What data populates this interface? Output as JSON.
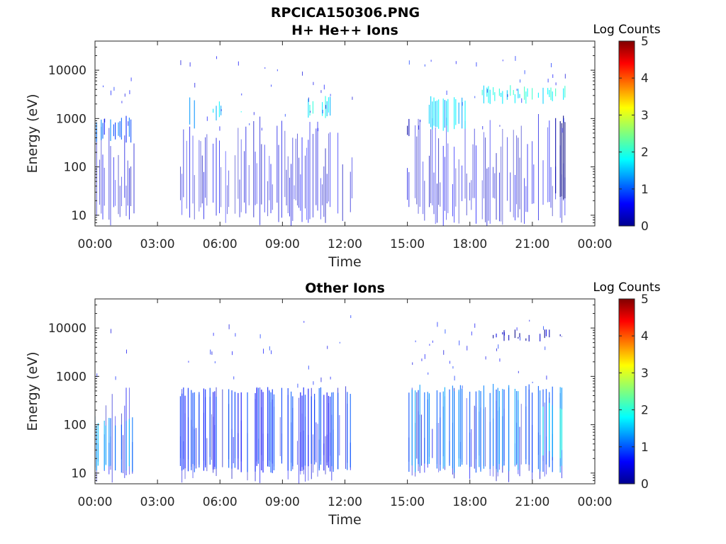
{
  "figure": {
    "title": "RPCICA150306.PNG"
  },
  "chart_data": [
    {
      "type": "heatmap",
      "title": "H+ He++ Ions",
      "xlabel": "Time",
      "ylabel": "Energy (eV)",
      "xticks": [
        "00:00",
        "03:00",
        "06:00",
        "09:00",
        "12:00",
        "15:00",
        "18:00",
        "21:00",
        "00:00"
      ],
      "xlim_hours": [
        0,
        24
      ],
      "yticks": [
        "10",
        "100",
        "1000",
        "10000"
      ],
      "yscale": "log",
      "ylim": [
        6,
        40000
      ],
      "colorbar": {
        "label": "Log Counts",
        "ticks": [
          "0",
          "1",
          "2",
          "3",
          "4",
          "5"
        ],
        "range": [
          0,
          5
        ],
        "colormap": "jet"
      },
      "data_intervals_hours": [
        [
          0.0,
          1.9
        ],
        [
          4.1,
          12.4
        ],
        [
          15.0,
          22.6
        ]
      ],
      "activity": [
        {
          "hours": [
            0.0,
            1.9
          ],
          "energy_eV": [
            300,
            1200
          ],
          "log_counts": 1.0
        },
        {
          "hours": [
            4.3,
            4.8
          ],
          "energy_eV": [
            500,
            3000
          ],
          "log_counts": 1.6
        },
        {
          "hours": [
            5.5,
            6.1
          ],
          "energy_eV": [
            900,
            2500
          ],
          "log_counts": 1.7
        },
        {
          "hours": [
            7.0,
            7.4
          ],
          "energy_eV": [
            900,
            2000
          ],
          "log_counts": 1.7
        },
        {
          "hours": [
            10.2,
            11.5
          ],
          "energy_eV": [
            900,
            3000
          ],
          "log_counts": 1.8
        },
        {
          "hours": [
            15.0,
            15.1
          ],
          "energy_eV": [
            400,
            1000
          ],
          "log_counts": 0.3
        },
        {
          "hours": [
            16.0,
            17.8
          ],
          "energy_eV": [
            500,
            3000
          ],
          "log_counts": 1.6
        },
        {
          "hours": [
            18.3,
            22.6
          ],
          "energy_eV": [
            2000,
            5000
          ],
          "log_counts": 1.9
        },
        {
          "hours": [
            22.0,
            22.6
          ],
          "energy_eV": [
            20,
            1200
          ],
          "log_counts": 0.1
        }
      ]
    },
    {
      "type": "heatmap",
      "title": "Other Ions",
      "xlabel": "Time",
      "ylabel": "Energy (eV)",
      "xticks": [
        "00:00",
        "03:00",
        "06:00",
        "09:00",
        "12:00",
        "15:00",
        "18:00",
        "21:00",
        "00:00"
      ],
      "xlim_hours": [
        0,
        24
      ],
      "yticks": [
        "10",
        "100",
        "1000",
        "10000"
      ],
      "yscale": "log",
      "ylim": [
        6,
        40000
      ],
      "colorbar": {
        "label": "Log Counts",
        "ticks": [
          "0",
          "1",
          "2",
          "3",
          "4",
          "5"
        ],
        "range": [
          0,
          5
        ],
        "colormap": "jet"
      },
      "data_intervals_hours": [
        [
          0.0,
          1.9
        ],
        [
          4.1,
          12.4
        ],
        [
          15.0,
          22.6
        ]
      ],
      "activity": [
        {
          "hours": [
            0.0,
            1.9
          ],
          "energy_eV": [
            10,
            150
          ],
          "log_counts": 1.3
        },
        {
          "hours": [
            4.1,
            12.4
          ],
          "energy_eV": [
            10,
            600
          ],
          "log_counts": 0.8
        },
        {
          "hours": [
            15.0,
            22.6
          ],
          "energy_eV": [
            10,
            700
          ],
          "log_counts": 1.2
        },
        {
          "hours": [
            21.3,
            22.6
          ],
          "energy_eV": [
            20,
            300
          ],
          "log_counts": 1.8
        },
        {
          "hours": [
            19.0,
            22.6
          ],
          "energy_eV": [
            6000,
            8000
          ],
          "log_counts": 0.3
        }
      ]
    }
  ]
}
